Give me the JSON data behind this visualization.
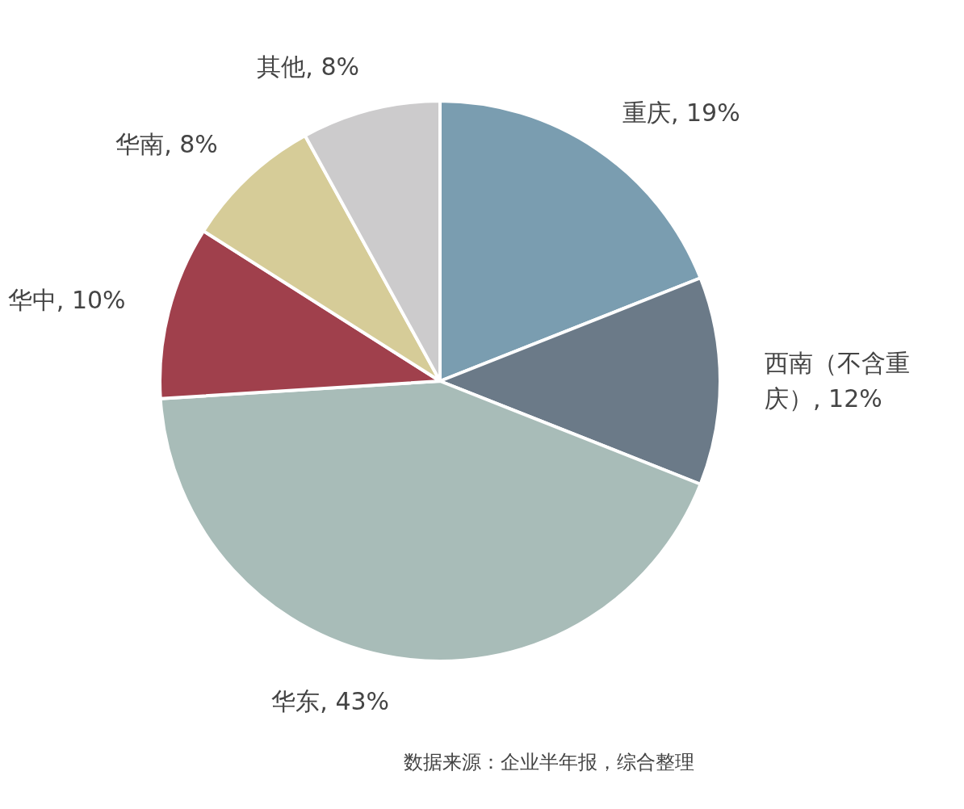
{
  "chart_data": {
    "type": "pie",
    "categories": [
      "重庆",
      "西南（不含重庆）",
      "华东",
      "华中",
      "华南",
      "其他"
    ],
    "values": [
      19,
      12,
      43,
      10,
      8,
      8
    ],
    "value_labels": [
      ", 19%",
      ", 12%",
      ", 43%",
      ", 10%",
      ", 8%",
      ", 8%"
    ],
    "colors": [
      "#7a9db0",
      "#6b7a88",
      "#a8bcb8",
      "#a0404c",
      "#d6cc98",
      "#cccbcc"
    ],
    "annotations": [
      "数据来源：企业半年报，综合整理"
    ]
  }
}
